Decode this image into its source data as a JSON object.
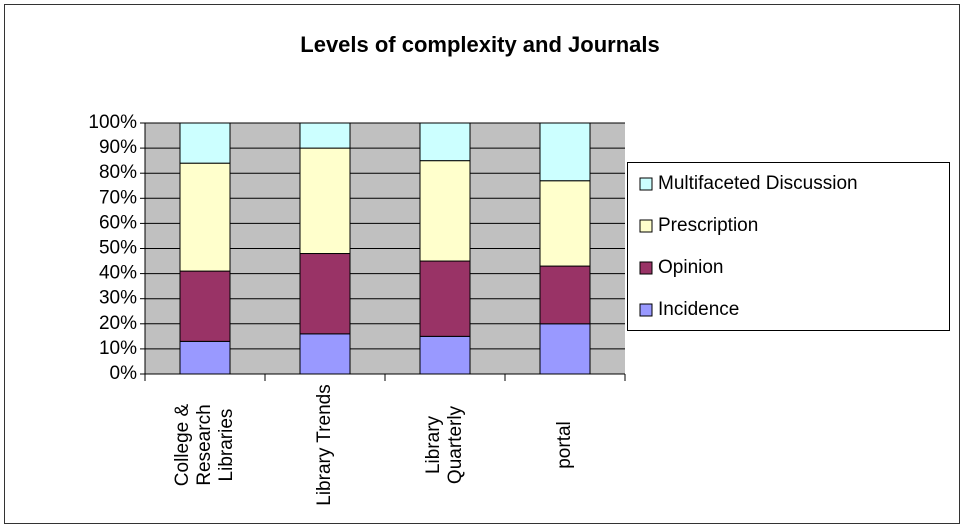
{
  "chart_data": {
    "type": "stacked_bar",
    "title": "Levels of complexity and Journals",
    "categories": [
      "College & Research Libraries",
      "Library Trends",
      "Library Quarterly",
      "portal"
    ],
    "series": [
      {
        "name": "Incidence",
        "color": "#9999ff",
        "values": [
          13,
          16,
          15,
          20
        ]
      },
      {
        "name": "Opinion",
        "color": "#993366",
        "values": [
          28,
          32,
          30,
          23
        ]
      },
      {
        "name": "Prescription",
        "color": "#ffffcc",
        "values": [
          43,
          42,
          40,
          34
        ]
      },
      {
        "name": "Multifaceted Discussion",
        "color": "#ccffff",
        "values": [
          16,
          10,
          15,
          23
        ]
      }
    ],
    "ylim": [
      0,
      100
    ],
    "yticks": [
      {
        "value": 0,
        "label": "0%"
      },
      {
        "value": 10,
        "label": "10%"
      },
      {
        "value": 20,
        "label": "20%"
      },
      {
        "value": 30,
        "label": "30%"
      },
      {
        "value": 40,
        "label": "40%"
      },
      {
        "value": 50,
        "label": "50%"
      },
      {
        "value": 60,
        "label": "60%"
      },
      {
        "value": 70,
        "label": "70%"
      },
      {
        "value": 80,
        "label": "80%"
      },
      {
        "value": 90,
        "label": "90%"
      },
      {
        "value": 100,
        "label": "100%"
      }
    ],
    "grid": true,
    "legend": "right"
  }
}
